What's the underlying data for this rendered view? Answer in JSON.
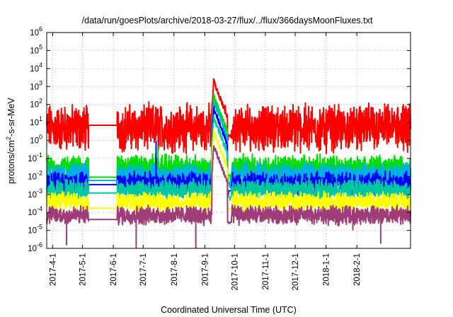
{
  "chart_data": {
    "type": "line",
    "title": "/data/run/goesPlots/archive/2018-03-27/flux/../flux/366daysMoonFluxes.txt",
    "xlabel": "Coordinated Universal Time (UTC)",
    "ylabel": {
      "prefix": "protons/cm",
      "sup": "2",
      "suffix": "-s-sr-MeV"
    },
    "yscale": "log",
    "ylim": [
      1e-06,
      1000000.0
    ],
    "y_ticks": [
      {
        "base": "10",
        "exp": "-6"
      },
      {
        "base": "10",
        "exp": "-5"
      },
      {
        "base": "10",
        "exp": "-4"
      },
      {
        "base": "10",
        "exp": "-3"
      },
      {
        "base": "10",
        "exp": "-2"
      },
      {
        "base": "10",
        "exp": "-1"
      },
      {
        "base": "10",
        "exp": "0"
      },
      {
        "base": "10",
        "exp": "1"
      },
      {
        "base": "10",
        "exp": "2"
      },
      {
        "base": "10",
        "exp": "3"
      },
      {
        "base": "10",
        "exp": "4"
      },
      {
        "base": "10",
        "exp": "5"
      },
      {
        "base": "10",
        "exp": "6"
      }
    ],
    "xlim": [
      "2017-03-26",
      "2018-03-27"
    ],
    "x_ticks": [
      {
        "date": "2017-04-01",
        "label": "2017-4-1"
      },
      {
        "date": "2017-05-01",
        "label": "2017-5-1"
      },
      {
        "date": "2017-06-01",
        "label": "2017-6-1"
      },
      {
        "date": "2017-07-01",
        "label": "2017-7-1"
      },
      {
        "date": "2017-08-01",
        "label": "2017-8-1"
      },
      {
        "date": "2017-09-01",
        "label": "2017-9-1"
      },
      {
        "date": "2017-10-01",
        "label": "2017-10-1"
      },
      {
        "date": "2017-11-01",
        "label": "2017-11-1"
      },
      {
        "date": "2017-12-01",
        "label": "2017-12-1"
      },
      {
        "date": "2018-01-01",
        "label": "2018-1-1"
      },
      {
        "date": "2018-02-01",
        "label": "2018-2-1"
      }
    ],
    "grid": true,
    "data_gap": [
      "2017-05-07",
      "2017-06-05"
    ],
    "event_peak": "2017-09-10",
    "series": [
      {
        "color": "#ff0000",
        "baseline": 5.0,
        "noise": 1.0,
        "gap_level": 7.0,
        "event_peak": 2000,
        "spikes": [
          {
            "date": "2017-07-16",
            "value": 60
          }
        ]
      },
      {
        "color": "#00e000",
        "baseline": 0.03,
        "noise": 0.55,
        "gap_level": 0.009,
        "event_peak": 300,
        "spikes": [
          {
            "date": "2017-07-16",
            "value": 0.5
          }
        ]
      },
      {
        "color": "#00b0e8",
        "baseline": 0.012,
        "noise": 0.5,
        "gap_level": 0.006,
        "event_peak": 150,
        "spikes": [
          {
            "date": "2017-07-14",
            "value": 0.08
          }
        ]
      },
      {
        "color": "#0000ff",
        "baseline": 0.004,
        "noise": 0.5,
        "gap_level": 0.0035,
        "event_peak": 60,
        "spikes": [
          {
            "date": "2017-07-14",
            "value": 1.0
          }
        ]
      },
      {
        "color": "#00c8a0",
        "baseline": 0.0018,
        "noise": 0.45,
        "gap_level": 0.0012,
        "event_peak": 20,
        "spikes": []
      },
      {
        "color": "#ffff00",
        "baseline": 0.0004,
        "noise": 0.4,
        "gap_level": 0.00017,
        "event_peak": 3,
        "spikes": []
      },
      {
        "color": "#a03c78",
        "baseline": 7e-05,
        "noise": 0.4,
        "gap_level": 4e-05,
        "event_peak": 0.5,
        "spikes": [
          {
            "date": "2017-04-15",
            "value": 1.5e-06
          },
          {
            "date": "2017-06-24",
            "value": 1e-06
          },
          {
            "date": "2017-08-23",
            "value": 1e-06
          },
          {
            "date": "2018-02-25",
            "value": 1.8e-06
          },
          {
            "date": "2018-01-28",
            "value": 1e-05
          }
        ]
      }
    ]
  }
}
